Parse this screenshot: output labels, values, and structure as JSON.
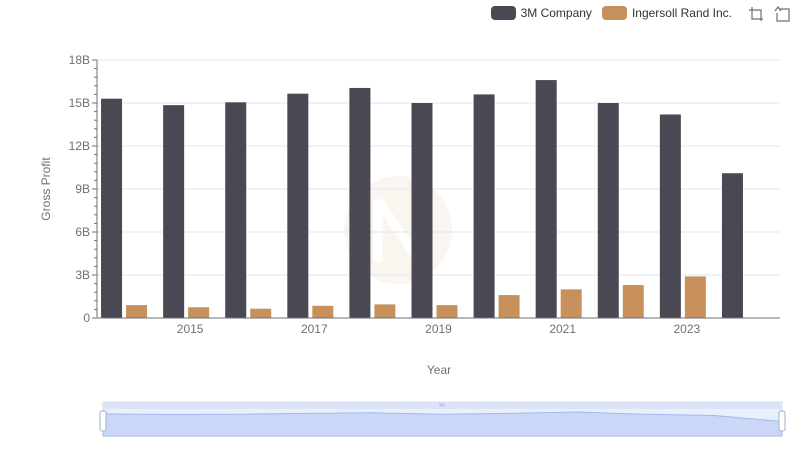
{
  "chart_data": {
    "type": "bar",
    "categories": [
      "2014",
      "2015",
      "2016",
      "2017",
      "2018",
      "2019",
      "2020",
      "2021",
      "2022",
      "2023",
      "2024"
    ],
    "series": [
      {
        "name": "3M Company",
        "color": "#494853",
        "values": [
          15.3,
          14.85,
          15.05,
          15.65,
          16.05,
          15.0,
          15.6,
          16.6,
          15.0,
          14.2,
          10.1
        ]
      },
      {
        "name": "Ingersoll Rand Inc.",
        "color": "#c8915b",
        "values": [
          0.9,
          0.75,
          0.65,
          0.85,
          0.95,
          0.9,
          1.6,
          2.0,
          2.3,
          2.9,
          null
        ]
      }
    ],
    "xlabel": "Year",
    "ylabel": "Gross Profit",
    "ylim": [
      0,
      18
    ],
    "yticks": [
      0,
      3,
      6,
      9,
      12,
      15,
      18
    ],
    "ytick_labels": [
      "0",
      "3B",
      "6B",
      "9B",
      "12B",
      "15B",
      "18B"
    ],
    "xtick_labels": [
      "2015",
      "2017",
      "2019",
      "2021",
      "2023"
    ],
    "legend_position": "top-right",
    "grid": true
  },
  "toolbox": {
    "zoom_icon": "data-zoom-icon",
    "reset_icon": "zoom-reset-icon"
  }
}
